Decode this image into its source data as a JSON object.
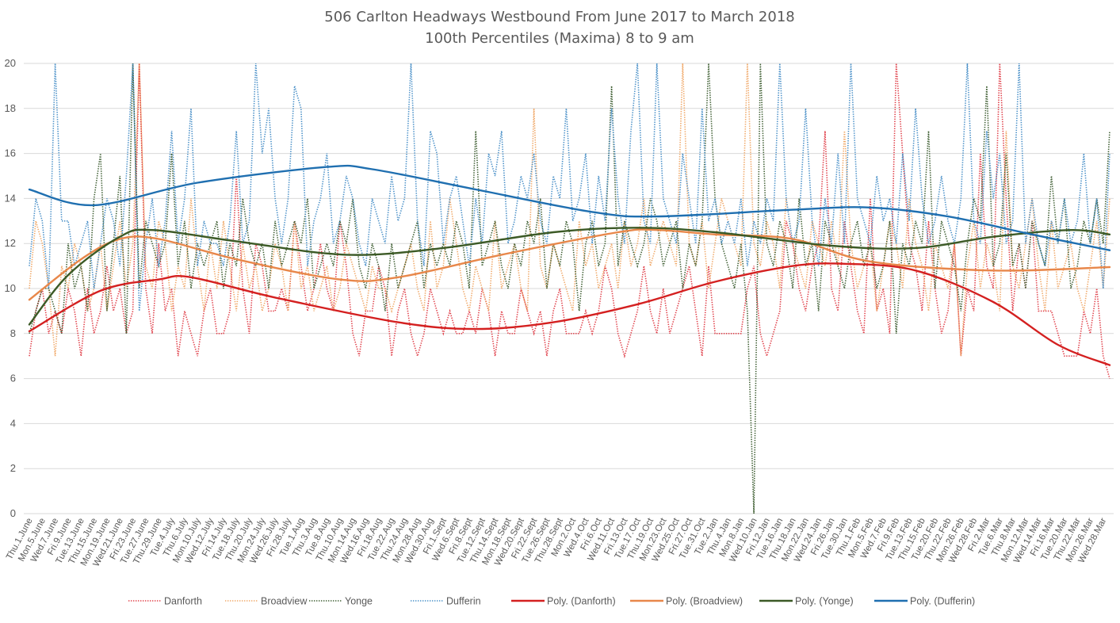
{
  "chart_data": {
    "type": "line",
    "title": "506 Carlton Headways Westbound From June 2017 to March 2018",
    "subtitle": "100th Percentiles (Maxima) 8 to 9 am",
    "xlabel": "",
    "ylabel": "",
    "ylim": [
      0,
      20
    ],
    "yticks": [
      0,
      2,
      4,
      6,
      8,
      10,
      12,
      14,
      16,
      18,
      20
    ],
    "grid": true,
    "legend_position": "bottom",
    "x_tick_labels": [
      "Thu.1.June",
      "Mon.5.June",
      "Wed.7.June",
      "Fri.9.June",
      "Tue.13.June",
      "Thu.15.June",
      "Mon.19.June",
      "Wed.21.June",
      "Fri.23.June",
      "Tue.27.June",
      "Thu.29.June",
      "Tue.4.July",
      "Thu.6.July",
      "Mon.10.July",
      "Wed.12.July",
      "Fri.14.July",
      "Tue.18.July",
      "Thu.20.July",
      "Mon.24.July",
      "Wed.26.July",
      "Fri.28.July",
      "Tue.1.Aug",
      "Thu.3.Aug",
      "Tue.8.Aug",
      "Thu.10.Aug",
      "Mon.14.Aug",
      "Wed.16.Aug",
      "Fri.18.Aug",
      "Tue.22.Aug",
      "Thu.24.Aug",
      "Mon.28.Aug",
      "Wed.30.Aug",
      "Fri.1.Sept",
      "Wed.6.Sept",
      "Fri.8.Sept",
      "Tue.12.Sept",
      "Thu.14.Sept",
      "Mon.18.Sept",
      "Wed.20.Sept",
      "Fri.22.Sept",
      "Tue.26.Sept",
      "Thu.28.Sept",
      "Mon.2.Oct",
      "Wed.4.Oct",
      "Fri.6.Oct",
      "Wed.11.Oct",
      "Fri.13.Oct",
      "Tue.17.Oct",
      "Thu.19.Oct",
      "Mon.23.Oct",
      "Wed.25.Oct",
      "Fri.27.Oct",
      "Tue.31.Oct",
      "Tue.2.Jan",
      "Thu.4.Jan",
      "Mon.8.Jan",
      "Wed.10.Jan",
      "Fri.12.Jan",
      "Tue.16.Jan",
      "Thu.18.Jan",
      "Mon.22.Jan",
      "Wed.24.Jan",
      "Fri.26.Jan",
      "Tue.30.Jan",
      "Thu.1.Feb",
      "Mon.5.Feb",
      "Wed.7.Feb",
      "Fri.9.Feb",
      "Tue.13.Feb",
      "Thu.15.Feb",
      "Tue.20.Feb",
      "Thu.22.Feb",
      "Mon.26.Feb",
      "Wed.28.Feb",
      "Fri.2.Mar",
      "Tue.6.Mar",
      "Thu.8.Mar",
      "Mon.12.Mar",
      "Wed.14.Mar",
      "Fri.16.Mar",
      "Tue.20.Mar",
      "Thu.22.Mar",
      "Mon.26.Mar",
      "Wed.28.Mar"
    ],
    "points_per_label": 2,
    "series": [
      {
        "name": "Danforth",
        "style": "dotted",
        "color": "#E0404A",
        "values": [
          7,
          9,
          10,
          8,
          9,
          8,
          10,
          9,
          7,
          10,
          8,
          9,
          11,
          9,
          10,
          8,
          9,
          24,
          10,
          8,
          12,
          9,
          10,
          7,
          9,
          8,
          7,
          9,
          10,
          8,
          8,
          9,
          15,
          10,
          8,
          12,
          11,
          9,
          9,
          10,
          9,
          13,
          11,
          9,
          10,
          12,
          10,
          9,
          13,
          11,
          8,
          7,
          9,
          9,
          11,
          10,
          7,
          9,
          10,
          8,
          7,
          8,
          10,
          9,
          8,
          9,
          8,
          8,
          9,
          8,
          10,
          9,
          7,
          9,
          8,
          8,
          10,
          9,
          8,
          9,
          7,
          9,
          10,
          8,
          8,
          8,
          9,
          8,
          9,
          11,
          10,
          8,
          7,
          8,
          9,
          11,
          9,
          8,
          10,
          8,
          9,
          10,
          11,
          9,
          7,
          11,
          8,
          8,
          8,
          8,
          8,
          10,
          11,
          8,
          7,
          8,
          9,
          13,
          12,
          10,
          9,
          11,
          12,
          17,
          10,
          9,
          13,
          11,
          9,
          8,
          14,
          9,
          10,
          8,
          20,
          16,
          12,
          11,
          9,
          13,
          10,
          8,
          9,
          12,
          7,
          10,
          9,
          16,
          11,
          10,
          20,
          14,
          9,
          12,
          10,
          13,
          9,
          9,
          9,
          8,
          7,
          7,
          7,
          9,
          8,
          10,
          7,
          6
        ]
      },
      {
        "name": "Broadview",
        "style": "dotted",
        "color": "#F0A868",
        "values": [
          10,
          13,
          12,
          10,
          7,
          11,
          10,
          12,
          11,
          9,
          10,
          12,
          9,
          11,
          13,
          10,
          12,
          22,
          11,
          10,
          13,
          12,
          9,
          11,
          10,
          14,
          11,
          9,
          12,
          10,
          13,
          11,
          9,
          12,
          10,
          11,
          9,
          10,
          12,
          11,
          9,
          13,
          10,
          11,
          9,
          10,
          11,
          9,
          10,
          12,
          11,
          10,
          9,
          11,
          10,
          10,
          9,
          10,
          11,
          12,
          10,
          9,
          13,
          10,
          11,
          14,
          12,
          10,
          9,
          11,
          10,
          9,
          13,
          10,
          11,
          12,
          10,
          9,
          18,
          11,
          10,
          12,
          11,
          10,
          9,
          13,
          11,
          12,
          10,
          11,
          12,
          10,
          13,
          11,
          12,
          14,
          11,
          12,
          13,
          12,
          11,
          20,
          12,
          11,
          13,
          10,
          12,
          14,
          13,
          12,
          11,
          22,
          12,
          11,
          13,
          12,
          10,
          14,
          12,
          11,
          10,
          13,
          12,
          11,
          13,
          11,
          17,
          12,
          10,
          11,
          12,
          9,
          11,
          13,
          12,
          10,
          14,
          12,
          11,
          9,
          12,
          11,
          10,
          12,
          7,
          11,
          13,
          10,
          12,
          11,
          9,
          17,
          11,
          10,
          12,
          14,
          11,
          9,
          13,
          10,
          11,
          12,
          10,
          9,
          11,
          13,
          10,
          14
        ]
      },
      {
        "name": "Yonge",
        "style": "dotted",
        "color": "#3E5E32",
        "values": [
          8,
          9,
          10,
          10,
          9,
          8,
          12,
          10,
          11,
          9,
          14,
          16,
          9,
          12,
          15,
          8,
          21,
          10,
          13,
          12,
          11,
          12,
          16,
          11,
          13,
          10,
          12,
          11,
          12,
          13,
          10,
          12,
          11,
          14,
          12,
          11,
          12,
          10,
          13,
          11,
          12,
          13,
          12,
          14,
          10,
          11,
          12,
          11,
          13,
          12,
          14,
          11,
          10,
          12,
          11,
          9,
          12,
          10,
          11,
          12,
          13,
          10,
          12,
          11,
          12,
          11,
          13,
          12,
          10,
          17,
          11,
          12,
          13,
          11,
          10,
          12,
          11,
          13,
          12,
          14,
          10,
          12,
          11,
          13,
          12,
          9,
          12,
          13,
          11,
          12,
          19,
          11,
          13,
          12,
          11,
          12,
          14,
          13,
          11,
          12,
          13,
          10,
          12,
          11,
          13,
          20,
          14,
          12,
          11,
          10,
          12,
          9,
          0,
          22,
          12,
          11,
          13,
          12,
          10,
          14,
          11,
          12,
          9,
          13,
          12,
          11,
          10,
          12,
          13,
          11,
          12,
          10,
          11,
          13,
          8,
          12,
          11,
          13,
          12,
          17,
          10,
          13,
          12,
          11,
          9,
          12,
          14,
          13,
          19,
          11,
          12,
          16,
          11,
          12,
          10,
          13,
          12,
          11,
          15,
          12,
          14,
          10,
          11,
          13,
          12,
          14,
          12,
          17
        ]
      },
      {
        "name": "Dufferin",
        "style": "dotted",
        "color": "#4A90C8",
        "values": [
          11,
          14,
          13,
          10,
          21,
          13,
          13,
          11,
          12,
          13,
          10,
          12,
          14,
          13,
          11,
          15,
          22,
          9,
          12,
          14,
          11,
          13,
          17,
          12,
          14,
          18,
          11,
          13,
          12,
          12,
          11,
          13,
          17,
          12,
          13,
          20,
          16,
          18,
          14,
          12,
          14,
          19,
          18,
          11,
          13,
          14,
          16,
          12,
          13,
          15,
          14,
          12,
          11,
          14,
          13,
          12,
          15,
          13,
          14,
          20,
          13,
          11,
          17,
          16,
          12,
          14,
          15,
          13,
          11,
          14,
          12,
          16,
          15,
          17,
          12,
          13,
          15,
          14,
          16,
          13,
          12,
          15,
          14,
          18,
          13,
          14,
          16,
          12,
          15,
          13,
          18,
          14,
          12,
          17,
          20,
          13,
          12,
          21,
          14,
          13,
          12,
          16,
          14,
          12,
          18,
          13,
          14,
          12,
          13,
          12,
          14,
          11,
          13,
          12,
          14,
          13,
          22,
          14,
          12,
          13,
          18,
          13,
          11,
          14,
          12,
          16,
          12,
          20,
          14,
          13,
          12,
          15,
          13,
          14,
          12,
          16,
          13,
          18,
          14,
          12,
          13,
          15,
          13,
          12,
          14,
          20,
          13,
          12,
          17,
          14,
          16,
          12,
          13,
          20,
          12,
          14,
          12,
          11,
          13,
          12,
          14,
          12,
          13,
          16,
          12,
          14,
          10,
          16
        ]
      },
      {
        "name": "Poly. (Danforth)",
        "style": "solid",
        "color": "#D42020",
        "trend_points": [
          [
            0,
            8.1
          ],
          [
            11,
            9.9
          ],
          [
            20,
            10.4
          ],
          [
            25,
            10.5
          ],
          [
            38,
            9.6
          ],
          [
            57,
            8.5
          ],
          [
            69,
            8.2
          ],
          [
            81,
            8.5
          ],
          [
            94,
            9.3
          ],
          [
            106,
            10.3
          ],
          [
            118,
            11.0
          ],
          [
            126,
            11.1
          ],
          [
            137,
            10.8
          ],
          [
            149,
            9.4
          ],
          [
            159,
            7.5
          ],
          [
            167,
            6.6
          ]
        ]
      },
      {
        "name": "Poly. (Broadview)",
        "style": "solid",
        "color": "#E8874A",
        "trend_points": [
          [
            0,
            9.5
          ],
          [
            8,
            11.3
          ],
          [
            14,
            12.2
          ],
          [
            20,
            12.2
          ],
          [
            32,
            11.3
          ],
          [
            48,
            10.4
          ],
          [
            57,
            10.5
          ],
          [
            73,
            11.5
          ],
          [
            91,
            12.5
          ],
          [
            97,
            12.6
          ],
          [
            106,
            12.4
          ],
          [
            118,
            12.2
          ],
          [
            130,
            11.2
          ],
          [
            149,
            10.8
          ],
          [
            167,
            10.95
          ]
        ]
      },
      {
        "name": "Poly. (Yonge)",
        "style": "solid",
        "color": "#3C5A26",
        "trend_points": [
          [
            0,
            8.4
          ],
          [
            6,
            10.6
          ],
          [
            14,
            12.3
          ],
          [
            19,
            12.6
          ],
          [
            32,
            12.1
          ],
          [
            49,
            11.5
          ],
          [
            64,
            11.8
          ],
          [
            81,
            12.5
          ],
          [
            94,
            12.7
          ],
          [
            106,
            12.5
          ],
          [
            124,
            11.9
          ],
          [
            137,
            11.8
          ],
          [
            149,
            12.3
          ],
          [
            161,
            12.6
          ],
          [
            167,
            12.4
          ]
        ]
      },
      {
        "name": "Poly. (Dufferin)",
        "style": "solid",
        "color": "#1F6FB0",
        "trend_points": [
          [
            0,
            14.4
          ],
          [
            10,
            13.7
          ],
          [
            26,
            14.7
          ],
          [
            46,
            15.4
          ],
          [
            53,
            15.3
          ],
          [
            69,
            14.4
          ],
          [
            87,
            13.4
          ],
          [
            97,
            13.2
          ],
          [
            118,
            13.5
          ],
          [
            130,
            13.6
          ],
          [
            142,
            13.2
          ],
          [
            155,
            12.4
          ],
          [
            167,
            11.7
          ]
        ]
      }
    ]
  }
}
